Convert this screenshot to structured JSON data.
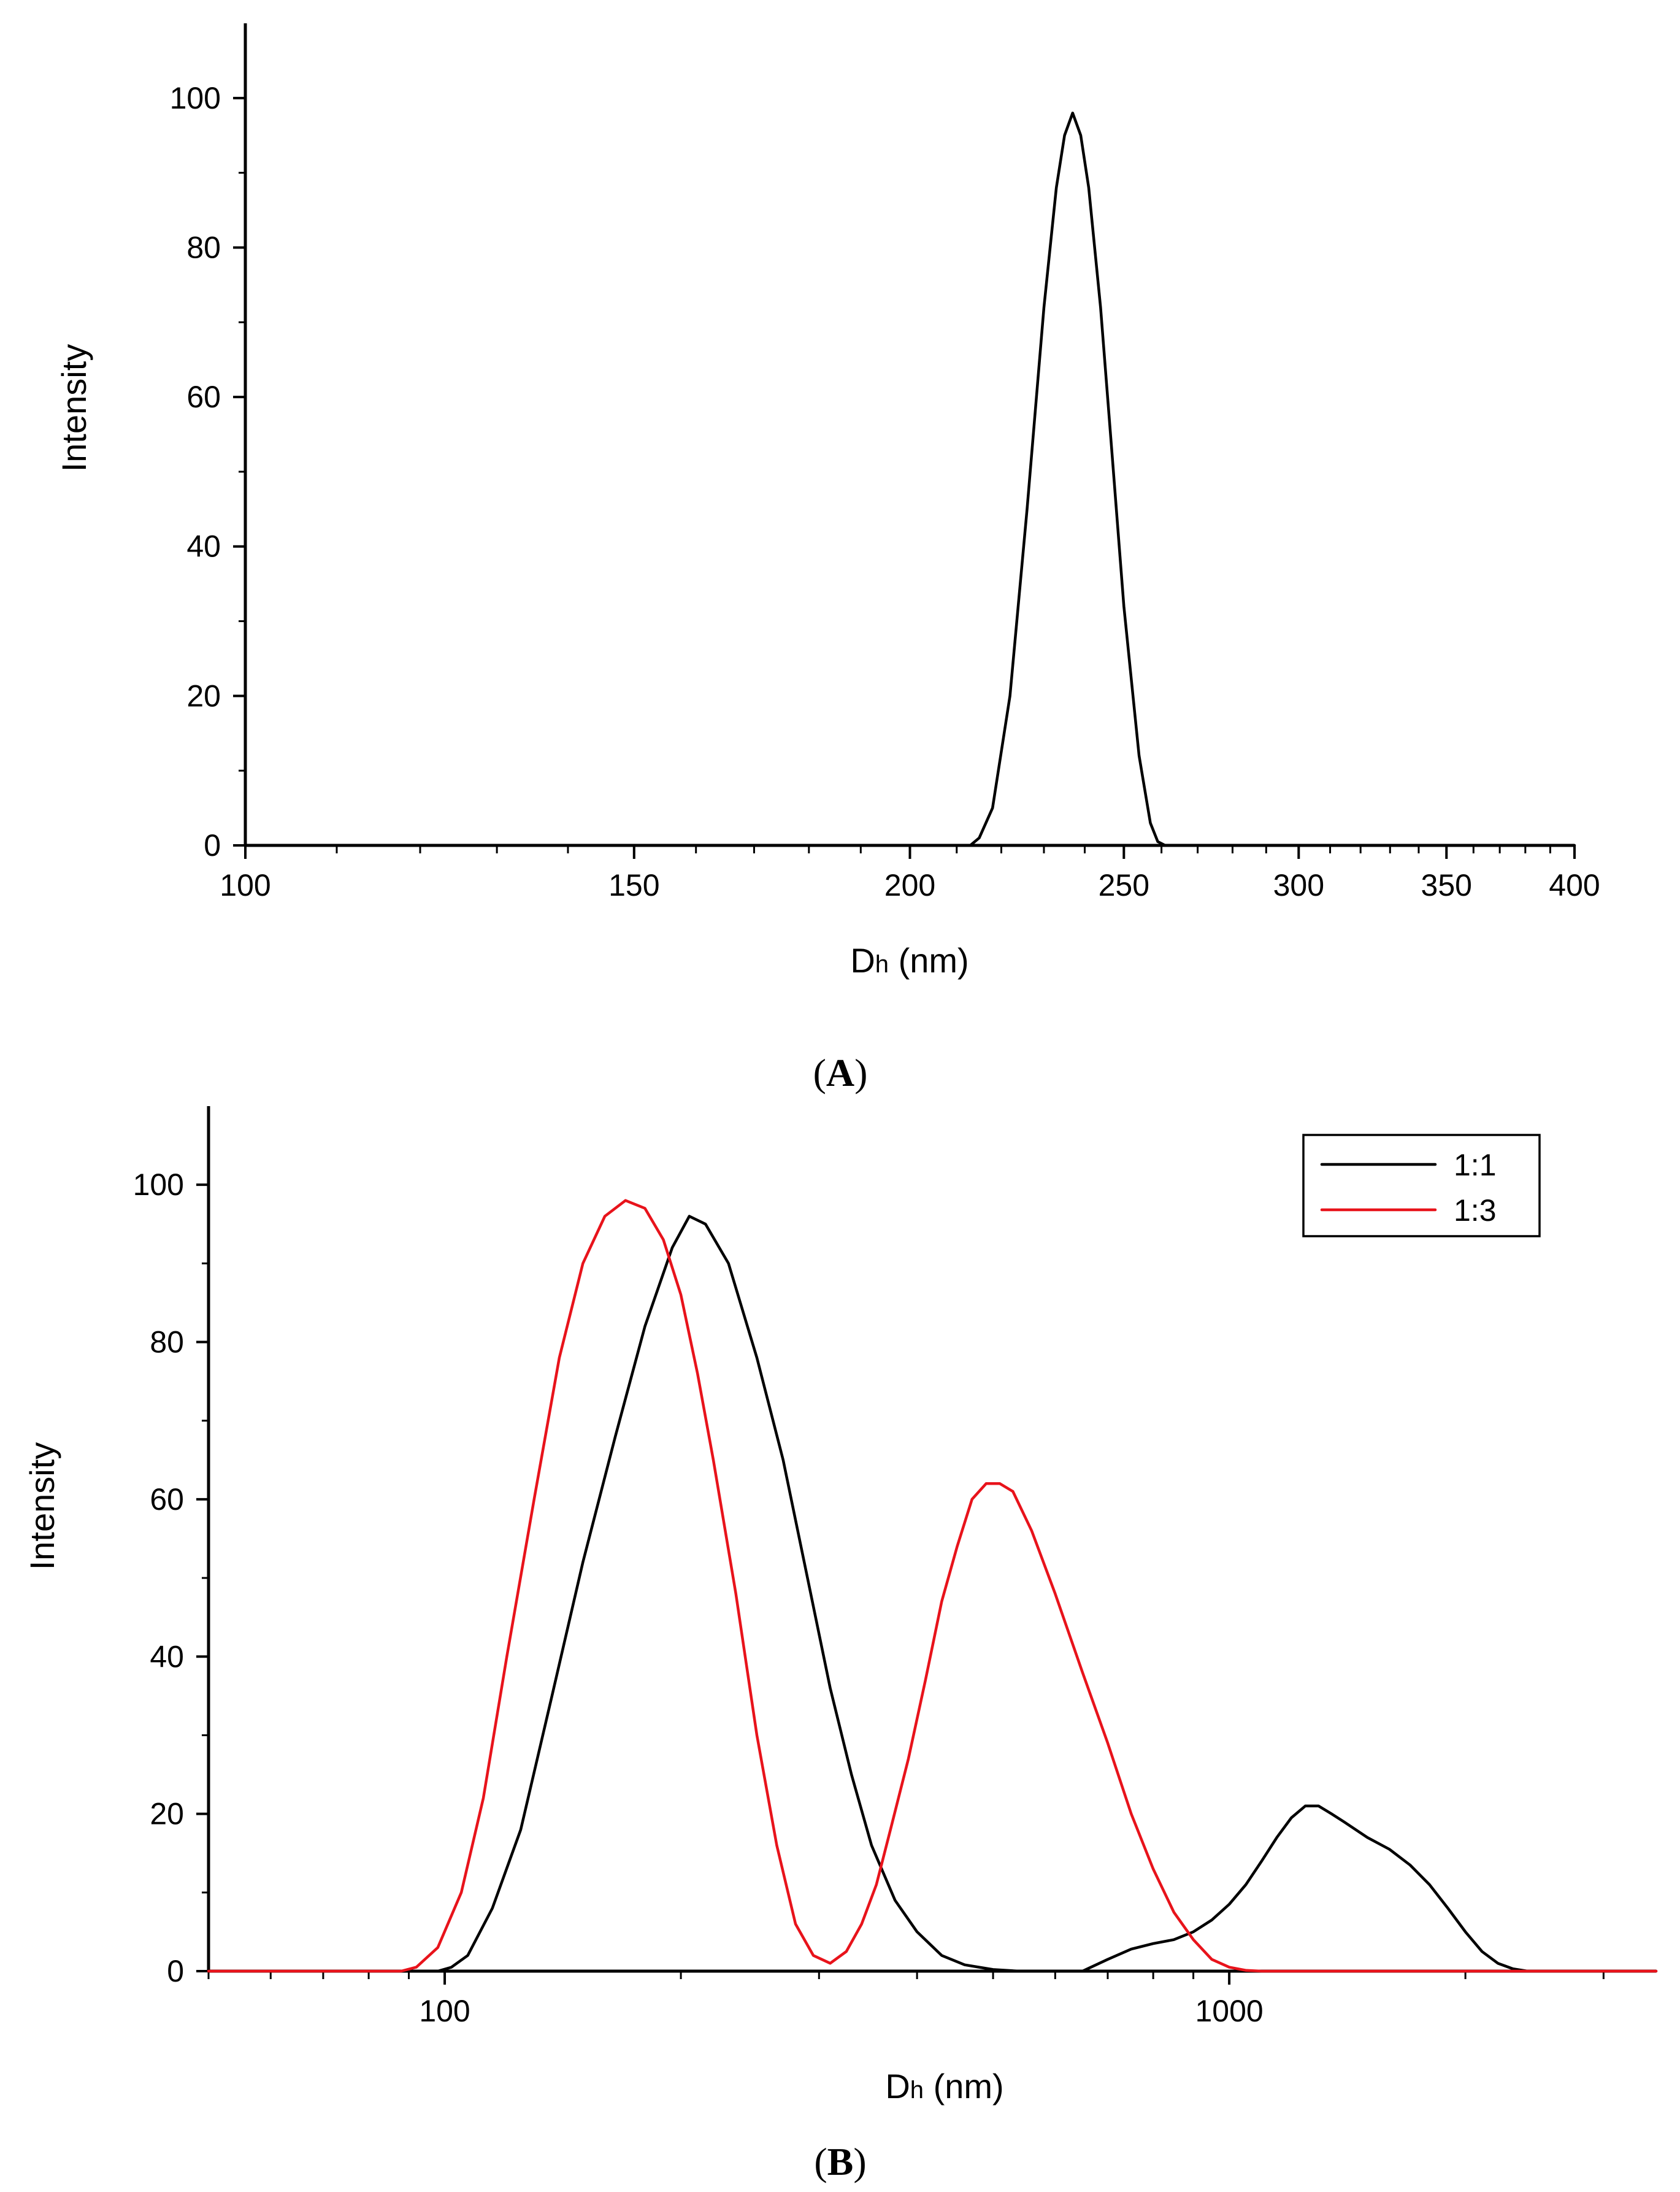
{
  "chart_data": [
    {
      "id": "A",
      "type": "line",
      "panel_label": "A",
      "xlabel": {
        "main": "D",
        "sub": "h",
        "unit": " (nm)"
      },
      "ylabel": "Intensity",
      "xscale": "log",
      "xlim": [
        100,
        400
      ],
      "ylim": [
        0,
        110
      ],
      "xticks": [
        100,
        150,
        200,
        250,
        300,
        350,
        400
      ],
      "xtick_labels": [
        "100",
        "150",
        "200",
        "250",
        "300",
        "350",
        "400"
      ],
      "yticks": [
        0,
        20,
        40,
        60,
        80,
        100
      ],
      "ytick_labels": [
        "0",
        "20",
        "40",
        "60",
        "80",
        "100"
      ],
      "series": [
        {
          "name": "",
          "color": "#000000",
          "x": [
            100,
            213,
            215,
            218,
            222,
            226,
            230,
            233,
            235,
            237,
            239,
            241,
            244,
            247,
            250,
            254,
            257,
            259,
            261,
            400
          ],
          "y": [
            0,
            0,
            1,
            5,
            20,
            45,
            72,
            88,
            95,
            98,
            95,
            88,
            72,
            52,
            32,
            12,
            3,
            0.5,
            0,
            0
          ]
        }
      ]
    },
    {
      "id": "B",
      "type": "line",
      "panel_label": "B",
      "xlabel": {
        "main": "D",
        "sub": "h",
        "unit": " (nm)"
      },
      "ylabel": "Intensity",
      "xscale": "log",
      "xlim": [
        50,
        3500
      ],
      "ylim": [
        0,
        110
      ],
      "xticks": [
        100,
        1000
      ],
      "xtick_labels": [
        "100",
        "1000"
      ],
      "yticks": [
        0,
        20,
        40,
        60,
        80,
        100
      ],
      "ytick_labels": [
        "0",
        "20",
        "40",
        "60",
        "80",
        "100"
      ],
      "legend": {
        "position": "top-right"
      },
      "series": [
        {
          "name": "1:1",
          "color": "#000000",
          "x": [
            50,
            98,
            102,
            107,
            115,
            125,
            137,
            150,
            165,
            180,
            195,
            205,
            215,
            230,
            250,
            270,
            290,
            310,
            330,
            350,
            375,
            400,
            430,
            460,
            500,
            540,
            600,
            650,
            700,
            750,
            800,
            850,
            900,
            950,
            1000,
            1050,
            1100,
            1150,
            1200,
            1250,
            1300,
            1350,
            1400,
            1500,
            1600,
            1700,
            1800,
            1900,
            2000,
            2100,
            2200,
            2300,
            2400,
            2500,
            3500
          ],
          "y": [
            0,
            0,
            0.5,
            2,
            8,
            18,
            35,
            52,
            68,
            82,
            92,
            96,
            95,
            90,
            78,
            65,
            50,
            36,
            25,
            16,
            9,
            5,
            2,
            0.8,
            0.2,
            0,
            0,
            0,
            1.5,
            2.8,
            3.5,
            4,
            5,
            6.5,
            8.5,
            11,
            14,
            17,
            19.5,
            21,
            21,
            20,
            19,
            17,
            15.5,
            13.5,
            11,
            8,
            5,
            2.5,
            1,
            0.3,
            0,
            0,
            0
          ],
          "label": "1:1"
        },
        {
          "name": "1:3",
          "color": "#e8131b",
          "x": [
            50,
            88,
            92,
            98,
            105,
            112,
            120,
            130,
            140,
            150,
            160,
            170,
            180,
            190,
            200,
            210,
            220,
            235,
            250,
            265,
            280,
            295,
            310,
            325,
            340,
            355,
            370,
            390,
            410,
            430,
            450,
            470,
            490,
            510,
            530,
            560,
            600,
            650,
            700,
            750,
            800,
            850,
            900,
            950,
            1000,
            1050,
            1100,
            1200,
            3500
          ],
          "y": [
            0,
            0,
            0.5,
            3,
            10,
            22,
            40,
            60,
            78,
            90,
            96,
            98,
            97,
            93,
            86,
            76,
            65,
            48,
            30,
            16,
            6,
            2,
            1,
            2.5,
            6,
            11,
            18,
            27,
            37,
            47,
            54,
            60,
            62,
            62,
            61,
            56,
            48,
            38,
            29,
            20,
            13,
            7.5,
            4,
            1.5,
            0.5,
            0.1,
            0,
            0,
            0
          ],
          "label": "1:3"
        }
      ]
    }
  ]
}
